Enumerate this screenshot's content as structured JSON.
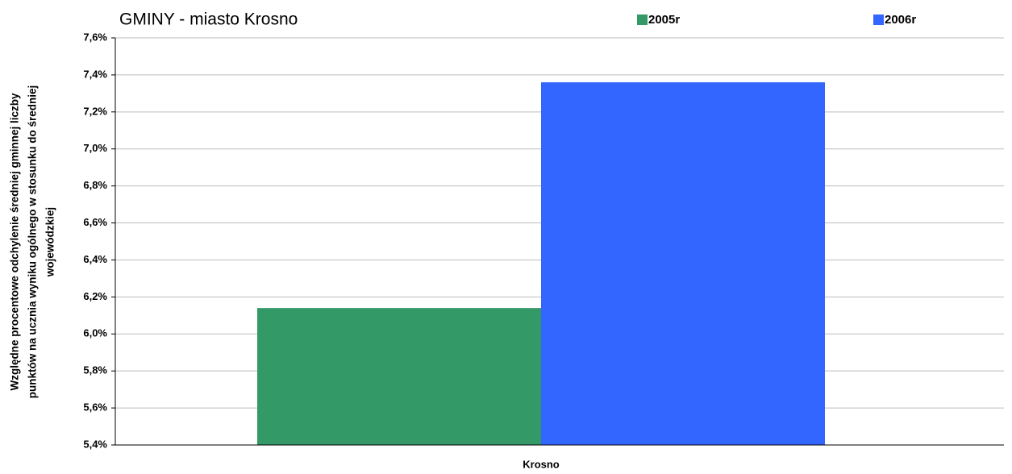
{
  "chart_data": {
    "type": "bar",
    "title": "GMINY -  miasto Krosno",
    "y_label": [
      "Względne procentowe odchylenie średniej gminnej liczby",
      "punktów na ucznia wyniku ogólnego w stosunku do średniej",
      "wojewódzkiej"
    ],
    "categories": [
      "Krosno"
    ],
    "series": [
      {
        "name": "2005r",
        "color": "#339966",
        "values": [
          6.14
        ]
      },
      {
        "name": "2006r",
        "color": "#3366ff",
        "values": [
          7.36
        ]
      }
    ],
    "ylim": [
      5.4,
      7.6
    ],
    "yticks": [
      {
        "value": 5.4,
        "label": "5,4%"
      },
      {
        "value": 5.6,
        "label": "5,6%"
      },
      {
        "value": 5.8,
        "label": "5,8%"
      },
      {
        "value": 6.0,
        "label": "6,0%"
      },
      {
        "value": 6.2,
        "label": "6,2%"
      },
      {
        "value": 6.4,
        "label": "6,4%"
      },
      {
        "value": 6.6,
        "label": "6,6%"
      },
      {
        "value": 6.8,
        "label": "6,8%"
      },
      {
        "value": 7.0,
        "label": "7,0%"
      },
      {
        "value": 7.2,
        "label": "7,2%"
      },
      {
        "value": 7.4,
        "label": "7,4%"
      },
      {
        "value": 7.6,
        "label": "7,6%"
      }
    ],
    "grid": true
  }
}
